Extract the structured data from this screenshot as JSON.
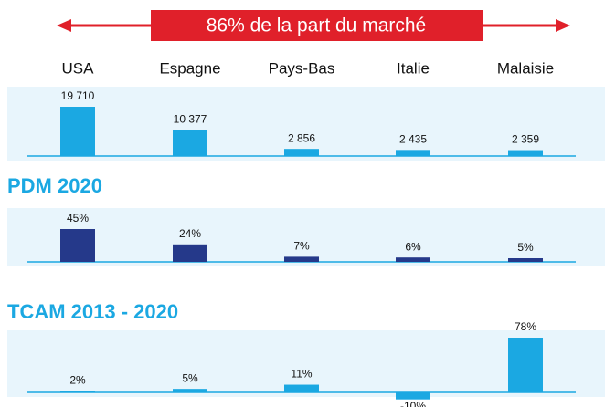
{
  "banner": "86% de la part du marché",
  "chart_data": [
    {
      "type": "bar",
      "categories": [
        "USA",
        "Espagne",
        "Pays-Bas",
        "Italie",
        "Malaisie"
      ],
      "values": [
        19710,
        10377,
        2856,
        2435,
        2359
      ],
      "value_labels": [
        "19 710",
        "10 377",
        "2 856",
        "2 435",
        "2 359"
      ],
      "color": "#1ba8e2"
    },
    {
      "type": "bar",
      "title": "PDM 2020",
      "values": [
        45,
        24,
        7,
        6,
        5
      ],
      "value_labels": [
        "45%",
        "24%",
        "7%",
        "6%",
        "5%"
      ],
      "color": "#25398a"
    },
    {
      "type": "bar",
      "title": "TCAM 2013 - 2020",
      "values": [
        2,
        5,
        11,
        -10,
        78
      ],
      "value_labels": [
        "2%",
        "5%",
        "11%",
        "-10%",
        "78%"
      ],
      "color": "#1ba8e2"
    }
  ]
}
